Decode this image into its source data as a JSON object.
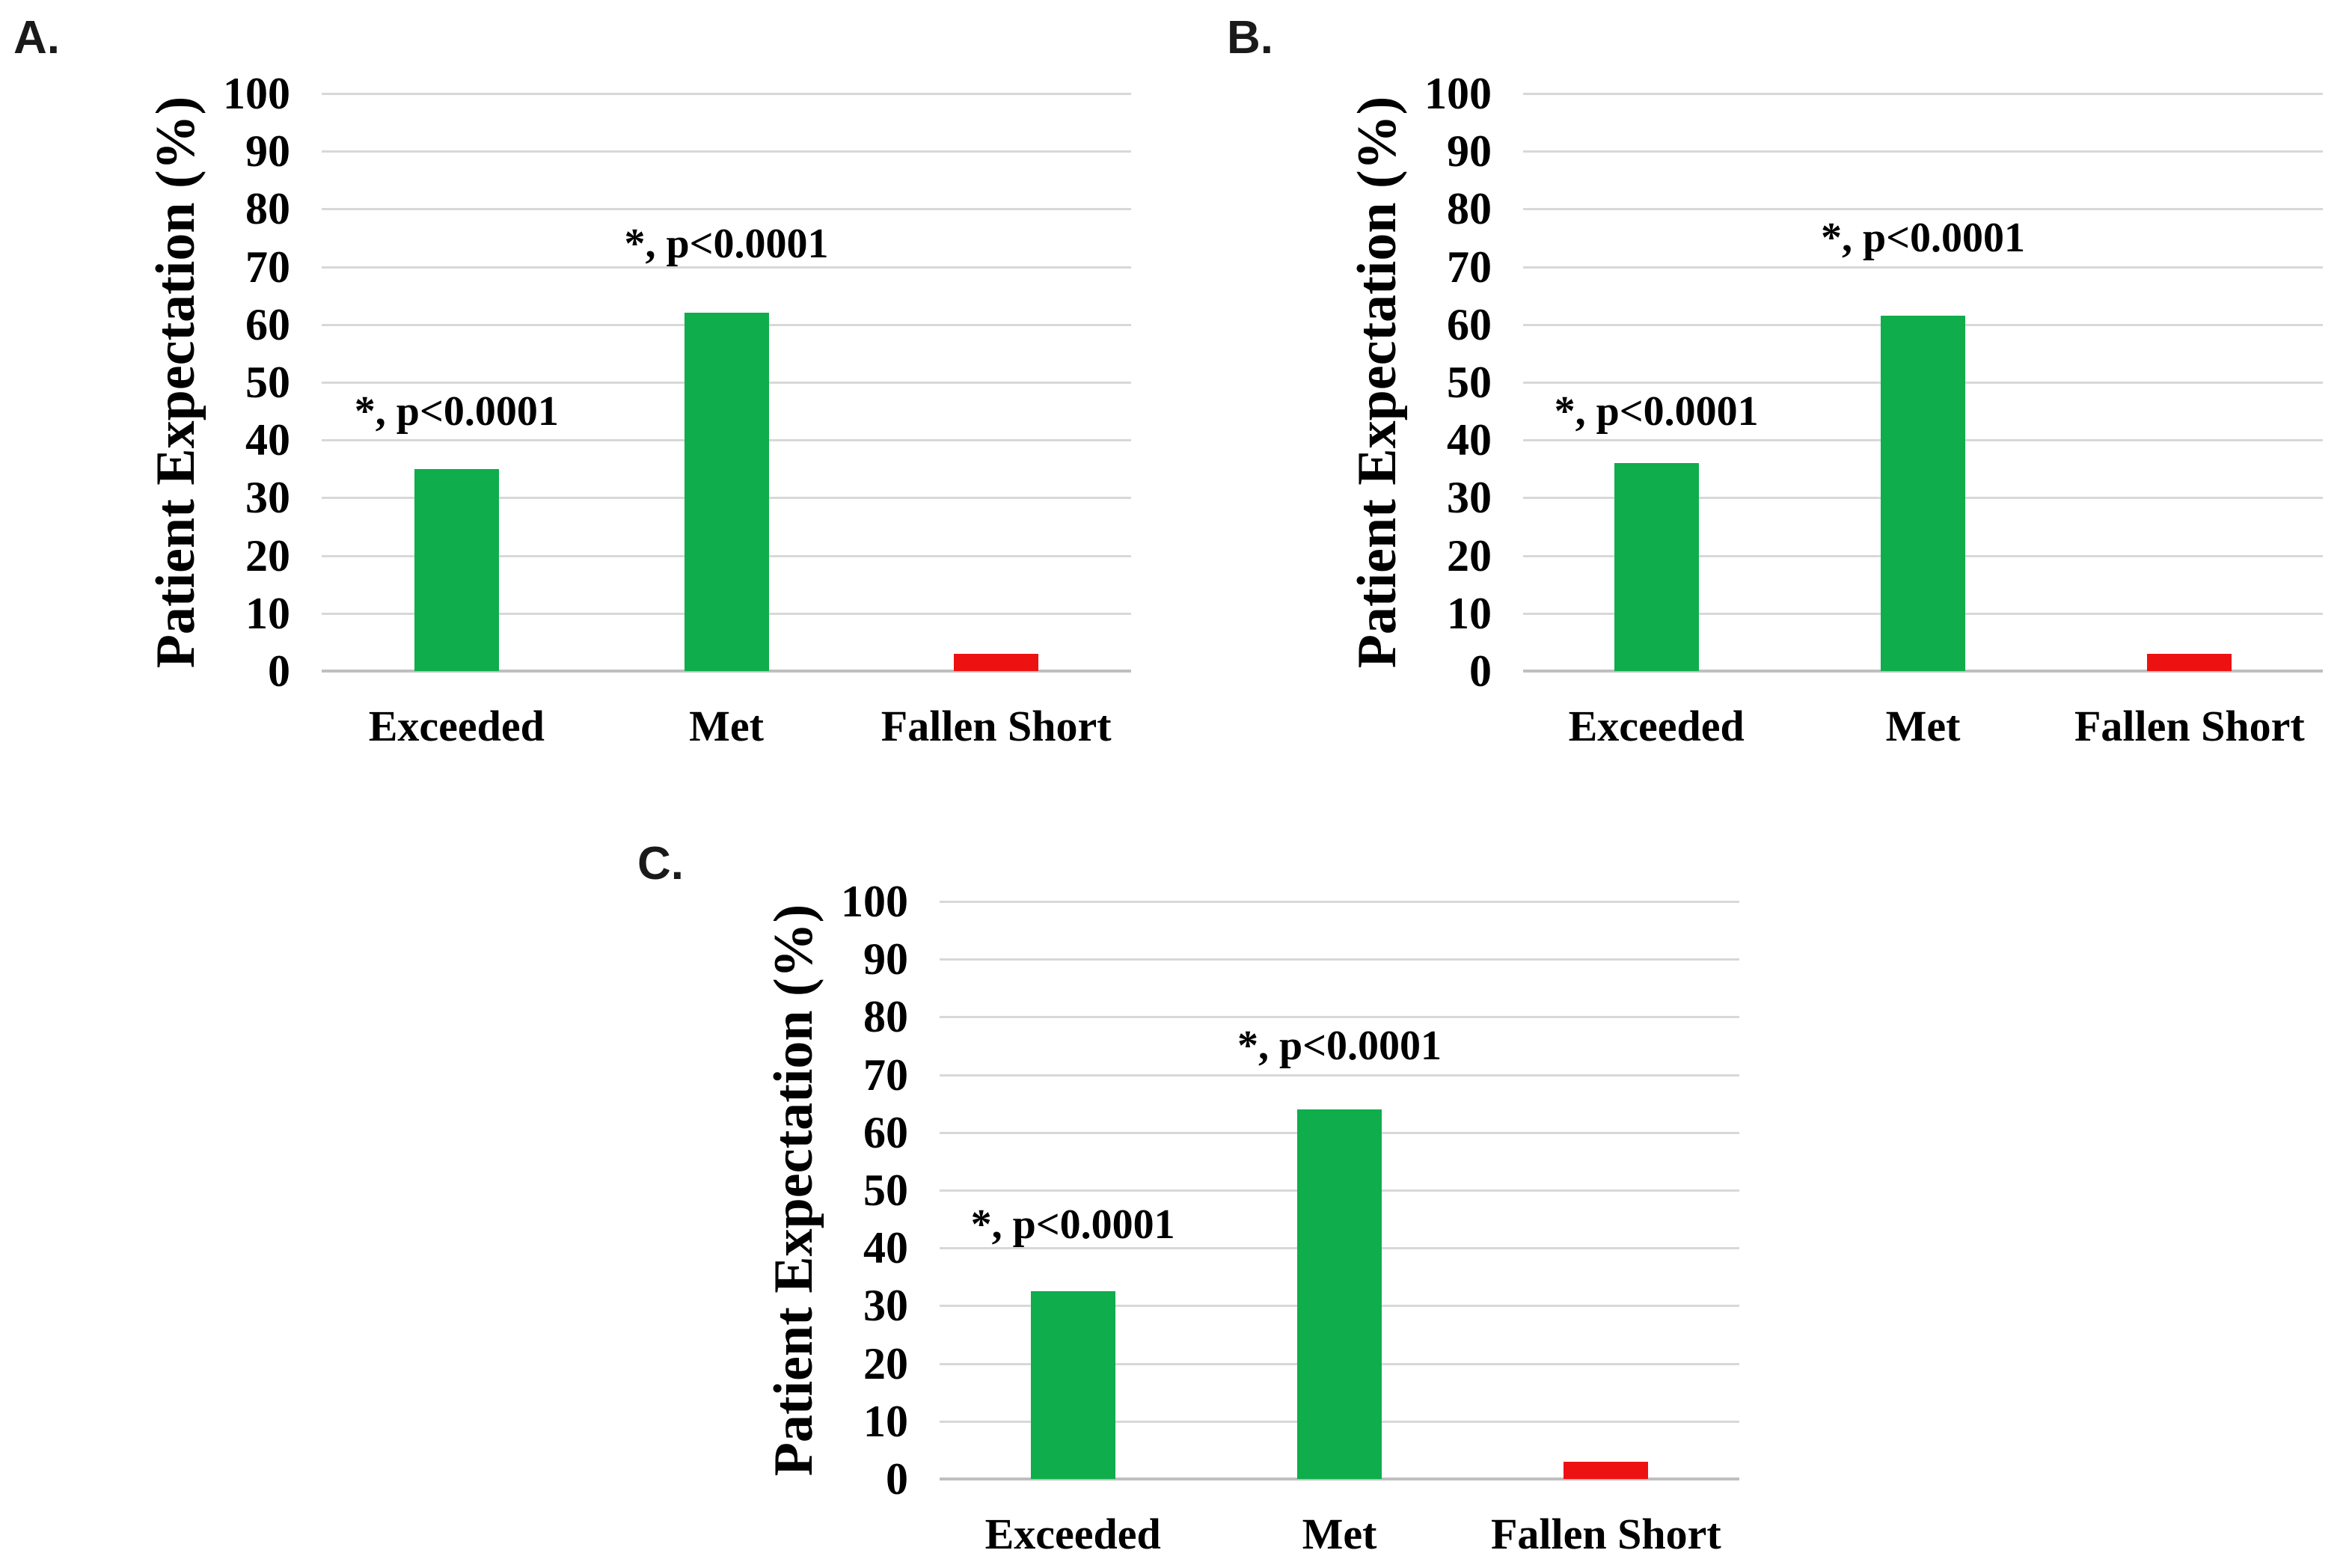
{
  "figure": {
    "background": "#ffffff",
    "text_color": "#000000",
    "gridline_color": "#d8d8d8",
    "axis_line_color": "#bfbfbf",
    "green": "#0fad4c",
    "red": "#ee1111"
  },
  "chart_data": [
    {
      "type": "bar",
      "panel_label": "A.",
      "title": "",
      "ylabel": "Patient Expectation (%)",
      "xlabel": "",
      "categories": [
        "Exceeded",
        "Met",
        "Fallen Short"
      ],
      "values": [
        35,
        62,
        3
      ],
      "bar_colors": [
        "#0fad4c",
        "#0fad4c",
        "#ee1111"
      ],
      "ylim": [
        0,
        100
      ],
      "yticks": [
        0,
        10,
        20,
        30,
        40,
        50,
        60,
        70,
        80,
        90,
        100
      ],
      "grid": true,
      "legend": "none",
      "annotations": [
        {
          "category_index": 0,
          "text": "*, p<0.0001",
          "y": 45
        },
        {
          "category_index": 1,
          "text": "*, p<0.0001",
          "y": 74
        }
      ]
    },
    {
      "type": "bar",
      "panel_label": "B.",
      "title": "",
      "ylabel": "Patient Expectation (%)",
      "xlabel": "",
      "categories": [
        "Exceeded",
        "Met",
        "Fallen Short"
      ],
      "values": [
        36,
        61.5,
        3
      ],
      "bar_colors": [
        "#0fad4c",
        "#0fad4c",
        "#ee1111"
      ],
      "ylim": [
        0,
        100
      ],
      "yticks": [
        0,
        10,
        20,
        30,
        40,
        50,
        60,
        70,
        80,
        90,
        100
      ],
      "grid": true,
      "legend": "none",
      "annotations": [
        {
          "category_index": 0,
          "text": "*, p<0.0001",
          "y": 45
        },
        {
          "category_index": 1,
          "text": "*, p<0.0001",
          "y": 75
        }
      ]
    },
    {
      "type": "bar",
      "panel_label": "C.",
      "title": "",
      "ylabel": "Patient Expectation (%)",
      "xlabel": "",
      "categories": [
        "Exceeded",
        "Met",
        "Fallen Short"
      ],
      "values": [
        32.5,
        64,
        3
      ],
      "bar_colors": [
        "#0fad4c",
        "#0fad4c",
        "#ee1111"
      ],
      "ylim": [
        0,
        100
      ],
      "yticks": [
        0,
        10,
        20,
        30,
        40,
        50,
        60,
        70,
        80,
        90,
        100
      ],
      "grid": true,
      "legend": "none",
      "annotations": [
        {
          "category_index": 0,
          "text": "*, p<0.0001",
          "y": 44
        },
        {
          "category_index": 1,
          "text": "*, p<0.0001",
          "y": 75
        }
      ]
    }
  ]
}
